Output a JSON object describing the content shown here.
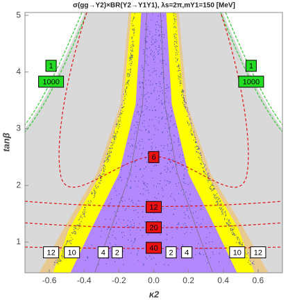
{
  "chart_data": {
    "type": "contour",
    "title": "σ(gg→Y2)×BR(Y2→Y1Y1), λs=2π,mY1=150 [MeV]",
    "x_label": "κ2",
    "y_label": "tanβ",
    "xlim": [
      -0.74,
      0.74
    ],
    "ylim": [
      0.46,
      5.05
    ],
    "xticks": [
      {
        "value": -0.6,
        "label": "-0.6"
      },
      {
        "value": -0.4,
        "label": "-0.4"
      },
      {
        "value": -0.2,
        "label": "-0.2"
      },
      {
        "value": 0,
        "label": "0.0"
      },
      {
        "value": 0.2,
        "label": "0.2"
      },
      {
        "value": 0.4,
        "label": "0.4"
      },
      {
        "value": 0.6,
        "label": "0.6"
      }
    ],
    "yticks": [
      1,
      2,
      3,
      4,
      5
    ],
    "annotations": [
      {
        "text": "1",
        "x": -0.59,
        "y": 4.11,
        "color": "#22dd22"
      },
      {
        "text": "1000",
        "x": -0.59,
        "y": 3.83,
        "color": "#22dd22"
      },
      {
        "text": "1",
        "x": 0.56,
        "y": 4.11,
        "color": "#22dd22"
      },
      {
        "text": "1000",
        "x": 0.56,
        "y": 3.83,
        "color": "#22dd22"
      },
      {
        "text": "6",
        "x": 0,
        "y": 2.5,
        "color": "#ee1111"
      },
      {
        "text": "12",
        "x": 0,
        "y": 1.62,
        "color": "#ee1111"
      },
      {
        "text": "20",
        "x": 0,
        "y": 1.26,
        "color": "#ee1111"
      },
      {
        "text": "40",
        "x": 0,
        "y": 0.9,
        "color": "#ee1111"
      },
      {
        "text": "12",
        "x": -0.59,
        "y": 0.82,
        "color": "#ffffff"
      },
      {
        "text": "10",
        "x": -0.47,
        "y": 0.82,
        "color": "#ffffff"
      },
      {
        "text": "4",
        "x": -0.29,
        "y": 0.82,
        "color": "#ffffff"
      },
      {
        "text": "2",
        "x": -0.21,
        "y": 0.82,
        "color": "#ffffff"
      },
      {
        "text": "2",
        "x": 0.1,
        "y": 0.82,
        "color": "#ffffff"
      },
      {
        "text": "4",
        "x": 0.19,
        "y": 0.82,
        "color": "#ffffff"
      },
      {
        "text": "10",
        "x": 0.48,
        "y": 0.82,
        "color": "#ffffff"
      },
      {
        "text": "12",
        "x": 0.6,
        "y": 0.82,
        "color": "#ffffff"
      }
    ]
  }
}
